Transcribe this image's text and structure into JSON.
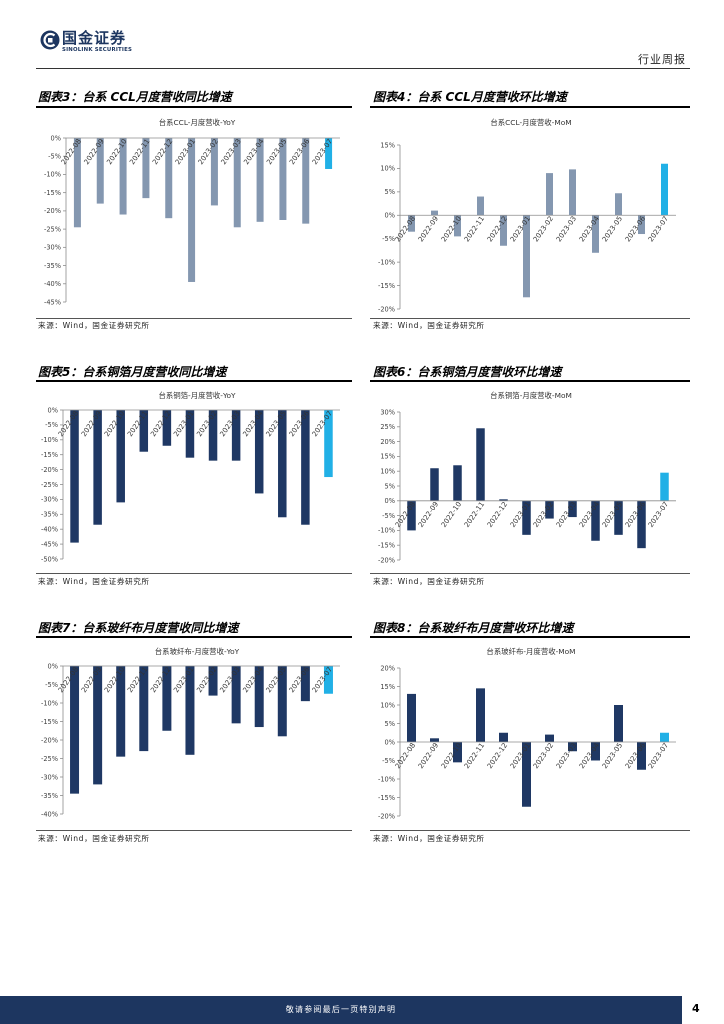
{
  "header": {
    "logo_cn": "国金证券",
    "logo_en": "SINOLINK SECURITIES",
    "report_type": "行业周报",
    "brand_color": "#1d3660"
  },
  "figures": [
    {
      "caption": "图表3：台系 CCL月度营收同比增速",
      "source": "来源：Wind，国金证券研究所"
    },
    {
      "caption": "图表4：台系 CCL月度营收环比增速",
      "source": "来源：Wind，国金证券研究所"
    },
    {
      "caption": "图表5：台系铜箔月度营收同比增速",
      "source": "来源：Wind，国金证券研究所"
    },
    {
      "caption": "图表6：台系铜箔月度营收环比增速",
      "source": "来源：Wind，国金证券研究所"
    },
    {
      "caption": "图表7：台系玻纤布月度营收同比增速",
      "source": "来源：Wind，国金证券研究所"
    },
    {
      "caption": "图表8：台系玻纤布月度营收环比增速",
      "source": "来源：Wind，国金证券研究所"
    }
  ],
  "chart_data": [
    {
      "type": "bar",
      "title": "台系CCL-月度营收-YoY",
      "categories": [
        "2022-08",
        "2022-09",
        "2022-10",
        "2022-11",
        "2022-12",
        "2023-01",
        "2023-02",
        "2023-03",
        "2023-04",
        "2023-05",
        "2023-06",
        "2023-07"
      ],
      "values": [
        -24.5,
        -18,
        -21,
        -16.5,
        -22,
        -39.5,
        -18.5,
        -24.5,
        -23,
        -22.5,
        -23.5,
        -8.5
      ],
      "ylim": [
        -45,
        0
      ],
      "yticks": [
        "0%",
        "-5%",
        "-10%",
        "-15%",
        "-20%",
        "-25%",
        "-30%",
        "-35%",
        "-40%",
        "-45%"
      ],
      "grid": false,
      "bar_color": "#8497b0",
      "highlight_color": "#21b0e6",
      "highlight_category": "2023-07"
    },
    {
      "type": "bar",
      "title": "台系CCL-月度营收-MoM",
      "categories": [
        "2022-08",
        "2022-09",
        "2022-10",
        "2022-11",
        "2022-12",
        "2023-01",
        "2023-02",
        "2023-03",
        "2023-04",
        "2023-05",
        "2023-06",
        "2023-07"
      ],
      "values": [
        -3.5,
        1,
        -4.5,
        4,
        -6.5,
        -17.5,
        9,
        9.8,
        -8,
        4.7,
        -4,
        11
      ],
      "ylim": [
        -20,
        15
      ],
      "yticks": [
        "15%",
        "10%",
        "5%",
        "0%",
        "-5%",
        "-10%",
        "-15%",
        "-20%"
      ],
      "grid": false,
      "bar_color": "#8497b0",
      "highlight_color": "#21b0e6",
      "highlight_category": "2023-07"
    },
    {
      "type": "bar",
      "title": "台系铜箔-月度营收-YoY",
      "categories": [
        "2022-08",
        "2022-09",
        "2022-10",
        "2022-11",
        "2022-12",
        "2023-01",
        "2023-02",
        "2023-03",
        "2023-04",
        "2023-05",
        "2023-06",
        "2023-07"
      ],
      "values": [
        -44.5,
        -38.5,
        -31,
        -14,
        -12,
        -16,
        -17,
        -17,
        -28,
        -36,
        -38.5,
        -22.5
      ],
      "ylim": [
        -50,
        0
      ],
      "yticks": [
        "0%",
        "-5%",
        "-10%",
        "-15%",
        "-20%",
        "-25%",
        "-30%",
        "-35%",
        "-40%",
        "-45%",
        "-50%"
      ],
      "grid": false,
      "bar_color": "#1f3864",
      "highlight_color": "#21b0e6",
      "highlight_category": "2023-07"
    },
    {
      "type": "bar",
      "title": "台系铜箔-月度营收-MoM",
      "categories": [
        "2022-08",
        "2022-09",
        "2022-10",
        "2022-11",
        "2022-12",
        "2023-01",
        "2023-02",
        "2023-03",
        "2023-04",
        "2023-05",
        "2023-06",
        "2023-07"
      ],
      "values": [
        -10,
        11,
        12,
        24.5,
        0.5,
        -11.5,
        -6,
        -5.5,
        -13.5,
        -11.5,
        -16,
        9.5
      ],
      "ylim": [
        -20,
        30
      ],
      "yticks": [
        "30%",
        "25%",
        "20%",
        "15%",
        "10%",
        "5%",
        "0%",
        "-5%",
        "-10%",
        "-15%",
        "-20%"
      ],
      "grid": false,
      "bar_color": "#1f3864",
      "highlight_color": "#21b0e6",
      "highlight_category": "2023-07"
    },
    {
      "type": "bar",
      "title": "台系玻纤布-月度营收-YoY",
      "categories": [
        "2022-08",
        "2022-09",
        "2022-10",
        "2022-11",
        "2022-12",
        "2023-01",
        "2023-02",
        "2023-03",
        "2023-04",
        "2023-05",
        "2023-06",
        "2023-07"
      ],
      "values": [
        -34.5,
        -32,
        -24.5,
        -23,
        -17.5,
        -24,
        -8,
        -15.5,
        -16.5,
        -19,
        -9.5,
        -7.5
      ],
      "ylim": [
        -40,
        0
      ],
      "yticks": [
        "0%",
        "-5%",
        "-10%",
        "-15%",
        "-20%",
        "-25%",
        "-30%",
        "-35%",
        "-40%"
      ],
      "grid": false,
      "bar_color": "#1f3864",
      "highlight_color": "#21b0e6",
      "highlight_category": "2023-07"
    },
    {
      "type": "bar",
      "title": "台系玻纤布-月度营收-MoM",
      "categories": [
        "2022-08",
        "2022-09",
        "2022-10",
        "2022-11",
        "2022-12",
        "2023-01",
        "2023-02",
        "2023-03",
        "2023-04",
        "2023-05",
        "2023-06",
        "2023-07"
      ],
      "values": [
        13,
        1,
        -5.5,
        14.5,
        2.5,
        -17.5,
        2,
        -2.5,
        -5,
        10,
        -7.5,
        2.5
      ],
      "ylim": [
        -20,
        20
      ],
      "yticks": [
        "20%",
        "15%",
        "10%",
        "5%",
        "0%",
        "-5%",
        "-10%",
        "-15%",
        "-20%"
      ],
      "grid": false,
      "bar_color": "#1f3864",
      "highlight_color": "#21b0e6",
      "highlight_category": "2023-07"
    }
  ],
  "footer": {
    "disclaimer": "敬请参阅最后一页特别声明",
    "page_number": "4"
  }
}
